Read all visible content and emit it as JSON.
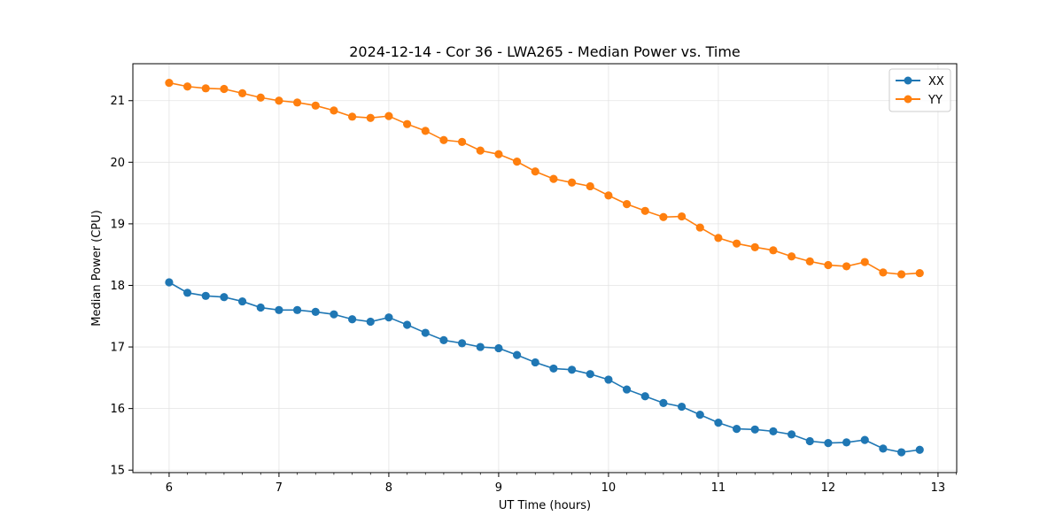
{
  "chart_data": {
    "type": "line",
    "title": "2024-12-14 - Cor 36 - LWA265 - Median Power vs. Time",
    "xlabel": "UT Time (hours)",
    "ylabel": "Median Power (CPU)",
    "xlim": [
      5.67,
      13.17
    ],
    "ylim": [
      14.96,
      21.6
    ],
    "xticks": [
      6,
      7,
      8,
      9,
      10,
      11,
      12,
      13
    ],
    "yticks": [
      15,
      16,
      17,
      18,
      19,
      20,
      21
    ],
    "grid": true,
    "legend_position": "top-right",
    "x": [
      6.0,
      6.1667,
      6.3333,
      6.5,
      6.6667,
      6.8333,
      7.0,
      7.1667,
      7.3333,
      7.5,
      7.6667,
      7.8333,
      8.0,
      8.1667,
      8.3333,
      8.5,
      8.6667,
      8.8333,
      9.0,
      9.1667,
      9.3333,
      9.5,
      9.6667,
      9.8333,
      10.0,
      10.1667,
      10.3333,
      10.5,
      10.6667,
      10.8333,
      11.0,
      11.1667,
      11.3333,
      11.5,
      11.6667,
      11.8333,
      12.0,
      12.1667,
      12.3333,
      12.5,
      12.6667,
      12.8333
    ],
    "series": [
      {
        "name": "XX",
        "color": "#1f77b4",
        "values": [
          18.05,
          17.88,
          17.83,
          17.81,
          17.74,
          17.64,
          17.6,
          17.6,
          17.57,
          17.53,
          17.45,
          17.41,
          17.48,
          17.36,
          17.23,
          17.11,
          17.06,
          17.0,
          16.98,
          16.87,
          16.75,
          16.65,
          16.63,
          16.56,
          16.47,
          16.31,
          16.2,
          16.09,
          16.03,
          15.9,
          15.77,
          15.67,
          15.66,
          15.63,
          15.58,
          15.47,
          15.44,
          15.45,
          15.49,
          15.35,
          15.29,
          15.33
        ]
      },
      {
        "name": "YY",
        "color": "#ff7f0e",
        "values": [
          21.29,
          21.23,
          21.2,
          21.19,
          21.12,
          21.05,
          21.0,
          20.97,
          20.92,
          20.84,
          20.74,
          20.72,
          20.75,
          20.62,
          20.51,
          20.36,
          20.33,
          20.19,
          20.13,
          20.01,
          19.85,
          19.73,
          19.67,
          19.61,
          19.46,
          19.32,
          19.21,
          19.11,
          19.12,
          18.94,
          18.77,
          18.68,
          18.62,
          18.57,
          18.47,
          18.39,
          18.33,
          18.31,
          18.38,
          18.21,
          18.18,
          18.2
        ]
      }
    ]
  }
}
